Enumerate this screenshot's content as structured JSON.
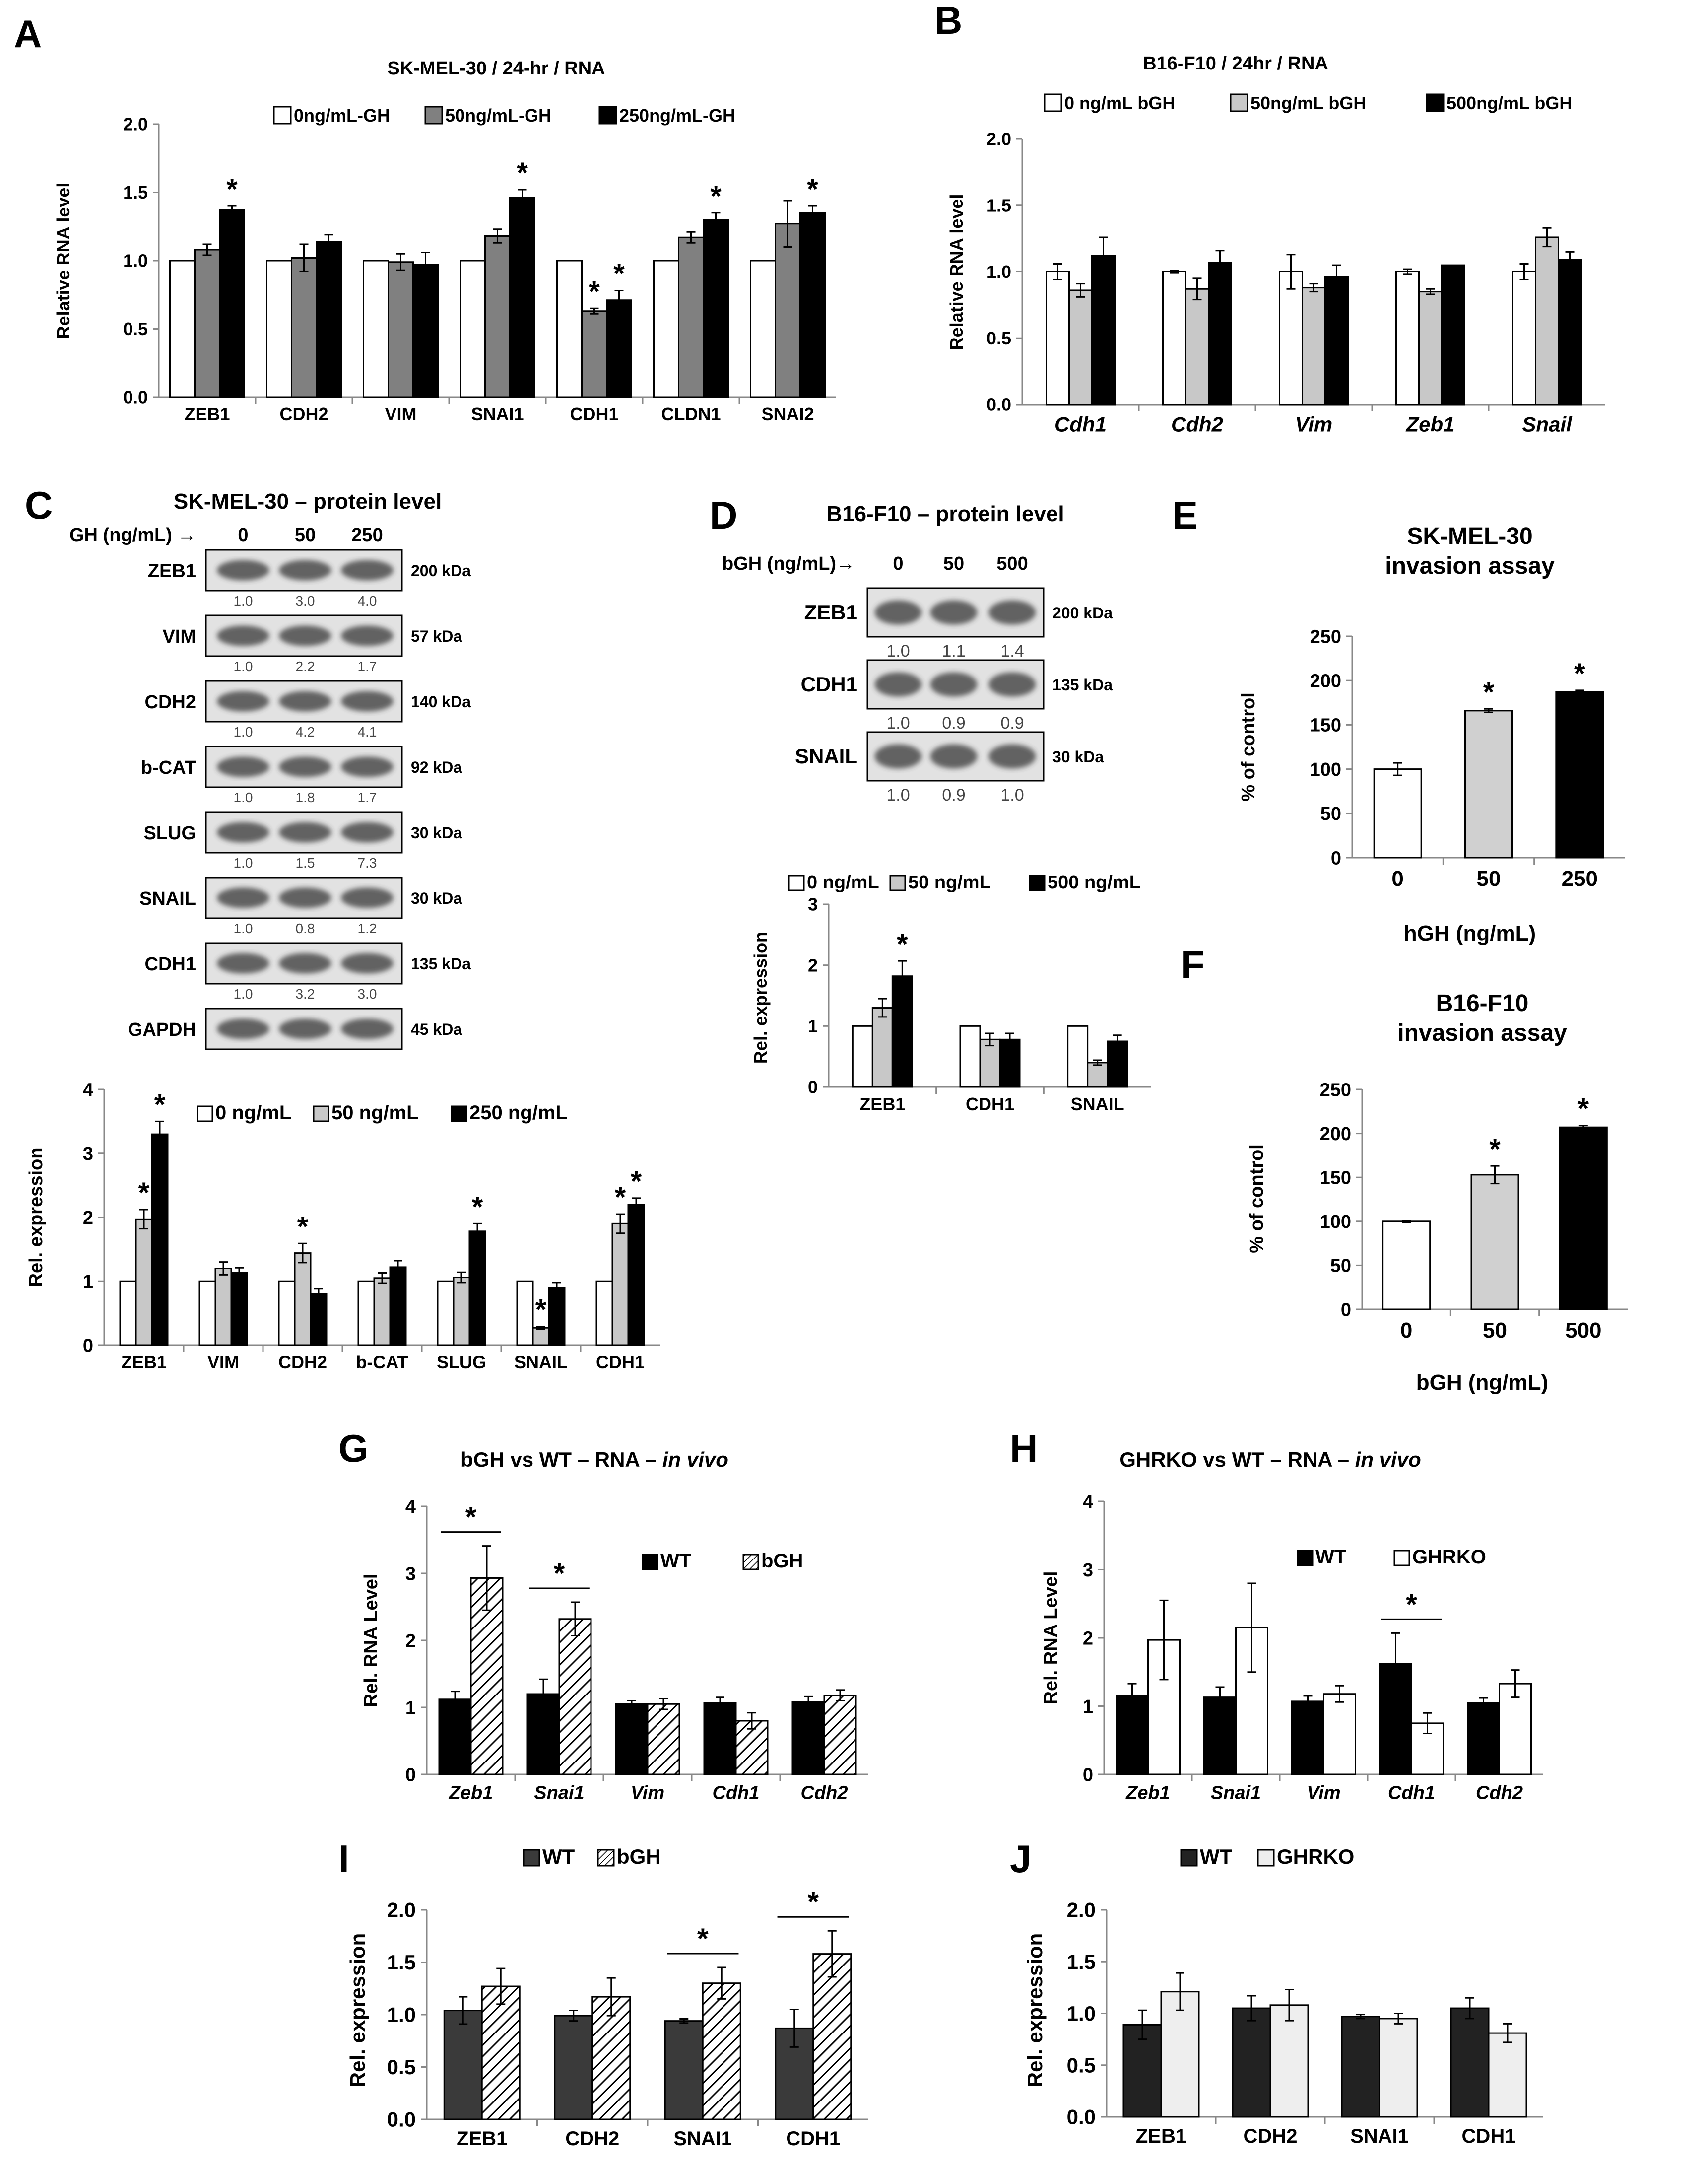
{
  "panel_labels": {
    "A": "A",
    "B": "B",
    "C": "C",
    "D": "D",
    "E": "E",
    "F": "F",
    "G": "G",
    "H": "H",
    "I": "I",
    "J": "J"
  },
  "blots": {
    "C": {
      "title": "SK-MEL-30 – protein level",
      "dose_label": "GH (ng/mL) →",
      "doses": [
        "0",
        "50",
        "250"
      ],
      "bands": [
        {
          "name": "ZEB1",
          "kda": "200 kDa",
          "q": [
            "1.0",
            "3.0",
            "4.0"
          ]
        },
        {
          "name": "VIM",
          "kda": "57 kDa",
          "q": [
            "1.0",
            "2.2",
            "1.7"
          ]
        },
        {
          "name": "CDH2",
          "kda": "140 kDa",
          "q": [
            "1.0",
            "4.2",
            "4.1"
          ]
        },
        {
          "name": "b-CAT",
          "kda": "92 kDa",
          "q": [
            "1.0",
            "1.8",
            "1.7"
          ]
        },
        {
          "name": "SLUG",
          "kda": "30 kDa",
          "q": [
            "1.0",
            "1.5",
            "7.3"
          ]
        },
        {
          "name": "SNAIL",
          "kda": "30 kDa",
          "q": [
            "1.0",
            "0.8",
            "1.2"
          ]
        },
        {
          "name": "CDH1",
          "kda": "135 kDa",
          "q": [
            "1.0",
            "3.2",
            "3.0"
          ]
        },
        {
          "name": "GAPDH",
          "kda": "45 kDa",
          "q": []
        }
      ]
    },
    "D": {
      "title": "B16-F10 – protein level",
      "dose_label": "bGH (ng/mL)→",
      "doses": [
        "0",
        "50",
        "500"
      ],
      "bands": [
        {
          "name": "ZEB1",
          "kda": "200 kDa",
          "q": [
            "1.0",
            "1.1",
            "1.4"
          ]
        },
        {
          "name": "CDH1",
          "kda": "135 kDa",
          "q": [
            "1.0",
            "0.9",
            "0.9"
          ]
        },
        {
          "name": "SNAIL",
          "kda": "30 kDa",
          "q": [
            "1.0",
            "0.9",
            "1.0"
          ]
        }
      ]
    }
  },
  "chart_data": [
    {
      "id": "A",
      "type": "bar",
      "title": "SK-MEL-30 / 24-hr / RNA",
      "xlabel": "",
      "ylabel": "Relative RNA level",
      "ylim": [
        0,
        2
      ],
      "yticks": [
        "0.0",
        "0.5",
        "1.0",
        "1.5",
        "2.0"
      ],
      "legend_position": "top",
      "categories": [
        "ZEB1",
        "CDH2",
        "VIM",
        "SNAI1",
        "CDH1",
        "CLDN1",
        "SNAI2"
      ],
      "series": [
        {
          "name": "0ng/mL-GH",
          "color": "#ffffff",
          "values": [
            1,
            1,
            1,
            1,
            1,
            1,
            1
          ],
          "errors": [
            0,
            0,
            0,
            0,
            0,
            0,
            0
          ]
        },
        {
          "name": "50ng/mL-GH",
          "color": "#808080",
          "values": [
            1.08,
            1.02,
            0.99,
            1.18,
            0.63,
            1.17,
            1.27
          ],
          "errors": [
            0.04,
            0.1,
            0.06,
            0.05,
            0.02,
            0.04,
            0.17
          ]
        },
        {
          "name": "250ng/mL-GH",
          "color": "#000000",
          "values": [
            1.37,
            1.14,
            0.97,
            1.46,
            0.71,
            1.3,
            1.35
          ],
          "errors": [
            0.03,
            0.05,
            0.09,
            0.06,
            0.07,
            0.05,
            0.05
          ]
        }
      ],
      "annotations": [
        {
          "text": "*",
          "cat": 0,
          "s": 2
        },
        {
          "text": "*",
          "cat": 3,
          "s": 2
        },
        {
          "text": "*",
          "cat": 4,
          "s": 1
        },
        {
          "text": "*",
          "cat": 4,
          "s": 2
        },
        {
          "text": "*",
          "cat": 5,
          "s": 2
        },
        {
          "text": "*",
          "cat": 6,
          "s": 2
        }
      ]
    },
    {
      "id": "B",
      "type": "bar",
      "title": "B16-F10 / 24hr / RNA",
      "xlabel": "",
      "ylabel": "Relative RNA level",
      "ylim": [
        0,
        2
      ],
      "yticks": [
        "0.0",
        "0.5",
        "1.0",
        "1.5",
        "2.0"
      ],
      "legend_position": "top",
      "italic_cats": true,
      "categories": [
        "Cdh1",
        "Cdh2",
        "Vim",
        "Zeb1",
        "Snail"
      ],
      "series": [
        {
          "name": "0 ng/mL bGH",
          "color": "#ffffff",
          "values": [
            1,
            1,
            1,
            1,
            1
          ],
          "errors": [
            0.06,
            0.01,
            0.13,
            0.02,
            0.06
          ]
        },
        {
          "name": "50ng/mL bGH",
          "color": "#c8c8c8",
          "values": [
            0.86,
            0.87,
            0.88,
            0.85,
            1.26
          ],
          "errors": [
            0.05,
            0.08,
            0.03,
            0.02,
            0.07
          ]
        },
        {
          "name": "500ng/mL bGH",
          "color": "#000000",
          "values": [
            1.12,
            1.07,
            0.96,
            1.05,
            1.09
          ],
          "errors": [
            0.14,
            0.09,
            0.09,
            0,
            0.06
          ]
        }
      ],
      "annotations": []
    },
    {
      "id": "C",
      "type": "bar",
      "title": "",
      "xlabel": "",
      "ylabel": "Rel. expression",
      "ylim": [
        0,
        4
      ],
      "yticks": [
        "0",
        "1",
        "2",
        "3",
        "4"
      ],
      "legend_position": "top-right",
      "categories": [
        "ZEB1",
        "VIM",
        "CDH2",
        "b-CAT",
        "SLUG",
        "SNAIL",
        "CDH1"
      ],
      "series": [
        {
          "name": "0 ng/mL",
          "color": "#ffffff",
          "values": [
            1,
            1,
            1,
            1,
            1,
            1,
            1
          ],
          "errors": [
            0,
            0,
            0,
            0,
            0,
            0,
            0
          ]
        },
        {
          "name": "50 ng/mL",
          "color": "#c8c8c8",
          "values": [
            1.97,
            1.2,
            1.44,
            1.05,
            1.06,
            0.27,
            1.9
          ],
          "errors": [
            0.15,
            0.1,
            0.15,
            0.08,
            0.08,
            0.02,
            0.15
          ]
        },
        {
          "name": "250 ng/mL",
          "color": "#000000",
          "values": [
            3.3,
            1.13,
            0.8,
            1.22,
            1.78,
            0.9,
            2.2
          ],
          "errors": [
            0.2,
            0.08,
            0.08,
            0.1,
            0.12,
            0.08,
            0.1
          ]
        }
      ],
      "annotations": [
        {
          "text": "*",
          "cat": 0,
          "s": 1
        },
        {
          "text": "*",
          "cat": 0,
          "s": 2
        },
        {
          "text": "*",
          "cat": 2,
          "s": 1
        },
        {
          "text": "*",
          "cat": 4,
          "s": 2
        },
        {
          "text": "*",
          "cat": 5,
          "s": 1
        },
        {
          "text": "*",
          "cat": 6,
          "s": 1
        },
        {
          "text": "*",
          "cat": 6,
          "s": 2
        }
      ]
    },
    {
      "id": "D",
      "type": "bar",
      "title": "",
      "xlabel": "",
      "ylabel": "Rel. expression",
      "ylim": [
        0,
        3
      ],
      "yticks": [
        "0",
        "1",
        "2",
        "3"
      ],
      "legend_position": "top",
      "categories": [
        "ZEB1",
        "CDH1",
        "SNAIL"
      ],
      "series": [
        {
          "name": "0 ng/mL",
          "color": "#ffffff",
          "values": [
            1,
            1,
            1
          ],
          "errors": [
            0,
            0,
            0
          ]
        },
        {
          "name": "50 ng/mL",
          "color": "#c8c8c8",
          "values": [
            1.3,
            0.78,
            0.4
          ],
          "errors": [
            0.15,
            0.1,
            0.04
          ]
        },
        {
          "name": "500 ng/mL",
          "color": "#000000",
          "values": [
            1.82,
            0.78,
            0.75
          ],
          "errors": [
            0.25,
            0.1,
            0.1
          ]
        }
      ],
      "annotations": [
        {
          "text": "*",
          "cat": 0,
          "s": 2
        }
      ]
    },
    {
      "id": "E",
      "type": "bar",
      "title": "SK-MEL-30\ninvasion assay",
      "xlabel": "hGH (ng/mL)",
      "ylabel": "% of control",
      "ylim": [
        0,
        250
      ],
      "yticks": [
        "0",
        "50",
        "100",
        "150",
        "200",
        "250"
      ],
      "categories": [
        "0",
        "50",
        "250"
      ],
      "series": [
        {
          "name": "",
          "colors": [
            "#ffffff",
            "#d0d0d0",
            "#000000"
          ],
          "values": [
            100,
            166,
            187
          ],
          "errors": [
            7,
            2,
            2
          ]
        }
      ],
      "annotations": [
        {
          "text": "*",
          "cat": 1,
          "s": 0
        },
        {
          "text": "*",
          "cat": 2,
          "s": 0
        }
      ]
    },
    {
      "id": "F",
      "type": "bar",
      "title": "B16-F10\ninvasion assay",
      "xlabel": "bGH (ng/mL)",
      "ylabel": "% of control",
      "ylim": [
        0,
        250
      ],
      "yticks": [
        "0",
        "50",
        "100",
        "150",
        "200",
        "250"
      ],
      "categories": [
        "0",
        "50",
        "500"
      ],
      "series": [
        {
          "name": "",
          "colors": [
            "#ffffff",
            "#d0d0d0",
            "#000000"
          ],
          "values": [
            100,
            153,
            207
          ],
          "errors": [
            1,
            10,
            2
          ]
        }
      ],
      "annotations": [
        {
          "text": "*",
          "cat": 1,
          "s": 0
        },
        {
          "text": "*",
          "cat": 2,
          "s": 0
        }
      ]
    },
    {
      "id": "G",
      "type": "bar",
      "title_parts": [
        "bGH vs WT – RNA – ",
        "in vivo"
      ],
      "xlabel": "",
      "ylabel": "Rel. RNA Level",
      "ylim": [
        0,
        4
      ],
      "yticks": [
        "0",
        "1",
        "2",
        "3",
        "4"
      ],
      "legend_position": "top-right",
      "italic_cats": true,
      "categories": [
        "Zeb1",
        "Snai1",
        "Vim",
        "Cdh1",
        "Cdh2"
      ],
      "series": [
        {
          "name": "WT",
          "color": "#000000",
          "values": [
            1.12,
            1.2,
            1.05,
            1.07,
            1.08
          ],
          "errors": [
            0.12,
            0.22,
            0.05,
            0.08,
            0.08
          ]
        },
        {
          "name": "bGH",
          "color": "hatch",
          "values": [
            2.93,
            2.32,
            1.05,
            0.8,
            1.18
          ],
          "errors": [
            0.48,
            0.25,
            0.08,
            0.12,
            0.08
          ]
        }
      ],
      "annotations": [
        {
          "text": "*",
          "cat": 0,
          "bracket": true
        },
        {
          "text": "*",
          "cat": 1,
          "bracket": true
        }
      ]
    },
    {
      "id": "H",
      "type": "bar",
      "title_parts": [
        "GHRKO vs WT – RNA – ",
        "in vivo"
      ],
      "xlabel": "",
      "ylabel": "Rel. RNA Level",
      "ylim": [
        0,
        4
      ],
      "yticks": [
        "0",
        "1",
        "2",
        "3",
        "4"
      ],
      "legend_position": "top-right",
      "italic_cats": true,
      "categories": [
        "Zeb1",
        "Snai1",
        "Vim",
        "Cdh1",
        "Cdh2"
      ],
      "series": [
        {
          "name": "WT",
          "color": "#000000",
          "values": [
            1.15,
            1.13,
            1.07,
            1.62,
            1.05
          ],
          "errors": [
            0.18,
            0.15,
            0.08,
            0.45,
            0.07
          ]
        },
        {
          "name": "GHRKO",
          "color": "#ffffff",
          "values": [
            1.97,
            2.15,
            1.18,
            0.75,
            1.33
          ],
          "errors": [
            0.58,
            0.65,
            0.12,
            0.15,
            0.2
          ]
        }
      ],
      "annotations": [
        {
          "text": "*",
          "cat": 3,
          "bracket": true
        }
      ]
    },
    {
      "id": "I",
      "type": "bar",
      "title": "",
      "xlabel": "",
      "ylabel": "Rel. expression",
      "ylim": [
        0,
        2
      ],
      "yticks": [
        "0.0",
        "0.5",
        "1.0",
        "1.5",
        "2.0"
      ],
      "legend_position": "top",
      "categories": [
        "ZEB1",
        "CDH2",
        "SNAI1",
        "CDH1"
      ],
      "series": [
        {
          "name": "WT",
          "color": "#3a3a3a",
          "values": [
            1.04,
            0.99,
            0.94,
            0.87
          ],
          "errors": [
            0.13,
            0.05,
            0.02,
            0.18
          ]
        },
        {
          "name": "bGH",
          "color": "hatch",
          "values": [
            1.27,
            1.17,
            1.3,
            1.58
          ],
          "errors": [
            0.17,
            0.18,
            0.15,
            0.22
          ]
        }
      ],
      "annotations": [
        {
          "text": "*",
          "cat": 2,
          "bracket": true
        },
        {
          "text": "*",
          "cat": 3,
          "bracket": true
        }
      ]
    },
    {
      "id": "J",
      "type": "bar",
      "title": "",
      "xlabel": "",
      "ylabel": "Rel. expression",
      "ylim": [
        0,
        2
      ],
      "yticks": [
        "0.0",
        "0.5",
        "1.0",
        "1.5",
        "2.0"
      ],
      "legend_position": "top",
      "categories": [
        "ZEB1",
        "CDH2",
        "SNAI1",
        "CDH1"
      ],
      "series": [
        {
          "name": "WT",
          "color": "#222222",
          "values": [
            0.89,
            1.05,
            0.97,
            1.05
          ],
          "errors": [
            0.14,
            0.12,
            0.02,
            0.1
          ]
        },
        {
          "name": "GHRKO",
          "color": "#eeeeee",
          "values": [
            1.21,
            1.08,
            0.95,
            0.81
          ],
          "errors": [
            0.18,
            0.15,
            0.05,
            0.09
          ]
        }
      ],
      "annotations": []
    }
  ]
}
